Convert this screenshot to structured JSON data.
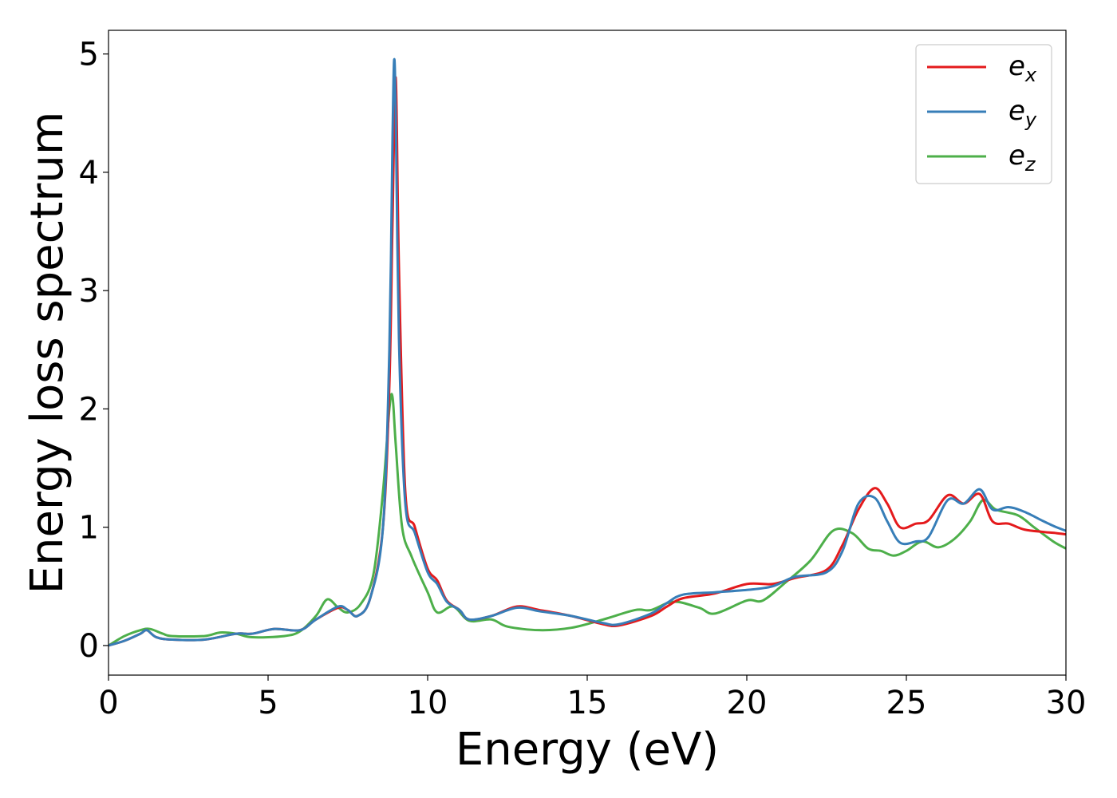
{
  "chart_data": {
    "type": "line",
    "xlabel": "Energy (eV)",
    "ylabel": "Energy loss spectrum",
    "xlim": [
      0,
      30
    ],
    "ylim": [
      -0.25,
      5.2
    ],
    "xticks": [
      0,
      5,
      10,
      15,
      20,
      25,
      30
    ],
    "yticks": [
      0,
      1,
      2,
      3,
      4,
      5
    ],
    "grid": false,
    "legend_position": "top-right",
    "series": [
      {
        "name": "e_x",
        "legend_base": "e",
        "legend_sub": "x",
        "color": "#e41a1c",
        "x": [
          0,
          0.5,
          1.0,
          1.2,
          1.5,
          2,
          3,
          4,
          4.5,
          5.2,
          6,
          6.5,
          7.2,
          7.5,
          7.8,
          8.2,
          8.6,
          8.8,
          8.9,
          9.0,
          9.1,
          9.3,
          9.6,
          10.0,
          10.3,
          10.6,
          11.0,
          11.3,
          12,
          12.8,
          13.5,
          14.5,
          15.5,
          16,
          17,
          17.5,
          18,
          19,
          20,
          20.8,
          21.5,
          22.5,
          23.0,
          23.5,
          24.0,
          24.4,
          24.8,
          25.3,
          25.7,
          26.3,
          26.8,
          27.3,
          27.7,
          28.2,
          28.7,
          29.3,
          29.7,
          30
        ],
        "y": [
          0.0,
          0.04,
          0.1,
          0.13,
          0.07,
          0.05,
          0.05,
          0.1,
          0.1,
          0.14,
          0.13,
          0.22,
          0.32,
          0.3,
          0.25,
          0.4,
          1.0,
          2.2,
          3.6,
          4.8,
          3.2,
          1.3,
          1.0,
          0.65,
          0.55,
          0.38,
          0.3,
          0.22,
          0.25,
          0.33,
          0.3,
          0.25,
          0.18,
          0.17,
          0.25,
          0.33,
          0.4,
          0.44,
          0.52,
          0.52,
          0.57,
          0.64,
          0.85,
          1.15,
          1.33,
          1.2,
          1.0,
          1.03,
          1.06,
          1.27,
          1.2,
          1.28,
          1.05,
          1.03,
          0.98,
          0.96,
          0.95,
          0.94
        ]
      },
      {
        "name": "e_y",
        "legend_base": "e",
        "legend_sub": "y",
        "color": "#377eb8",
        "x": [
          0,
          0.5,
          1.0,
          1.2,
          1.5,
          2,
          3,
          4,
          4.5,
          5.2,
          6,
          6.5,
          7.2,
          7.5,
          7.8,
          8.2,
          8.6,
          8.8,
          8.9,
          8.95,
          9.0,
          9.1,
          9.3,
          9.6,
          10.0,
          10.3,
          10.6,
          11.0,
          11.3,
          12,
          12.8,
          13.5,
          14.5,
          15.5,
          16,
          17,
          17.5,
          18,
          19,
          20,
          20.8,
          21.5,
          22.5,
          23.0,
          23.5,
          24.0,
          24.4,
          24.8,
          25.3,
          25.7,
          26.3,
          26.8,
          27.3,
          27.7,
          28.2,
          28.7,
          29.3,
          29.7,
          30
        ],
        "y": [
          0.0,
          0.04,
          0.1,
          0.13,
          0.07,
          0.05,
          0.05,
          0.1,
          0.1,
          0.14,
          0.13,
          0.22,
          0.33,
          0.3,
          0.25,
          0.4,
          1.0,
          2.5,
          4.3,
          4.95,
          4.5,
          2.6,
          1.2,
          0.95,
          0.62,
          0.52,
          0.37,
          0.3,
          0.22,
          0.25,
          0.32,
          0.29,
          0.25,
          0.19,
          0.18,
          0.27,
          0.36,
          0.43,
          0.45,
          0.47,
          0.5,
          0.58,
          0.62,
          0.8,
          1.2,
          1.25,
          1.05,
          0.87,
          0.88,
          0.92,
          1.23,
          1.2,
          1.32,
          1.15,
          1.17,
          1.13,
          1.05,
          1.0,
          0.97
        ]
      },
      {
        "name": "e_z",
        "legend_base": "e",
        "legend_sub": "z",
        "color": "#4daf4a",
        "x": [
          0,
          0.5,
          1.0,
          1.3,
          1.7,
          2,
          3,
          3.5,
          4,
          4.5,
          5.5,
          6,
          6.5,
          6.85,
          7.2,
          7.5,
          7.9,
          8.3,
          8.6,
          8.8,
          8.9,
          9.0,
          9.2,
          9.5,
          10.0,
          10.3,
          10.8,
          11.3,
          12,
          12.5,
          13.5,
          14.5,
          15.5,
          16.5,
          17,
          17.7,
          18.5,
          19,
          20,
          20.5,
          21.2,
          22.0,
          22.7,
          23.3,
          23.8,
          24.2,
          24.6,
          25.0,
          25.5,
          26.0,
          26.5,
          27.0,
          27.4,
          27.8,
          28.5,
          29.0,
          29.6,
          30
        ],
        "y": [
          0.0,
          0.08,
          0.13,
          0.14,
          0.1,
          0.08,
          0.08,
          0.11,
          0.1,
          0.07,
          0.08,
          0.12,
          0.25,
          0.39,
          0.32,
          0.28,
          0.35,
          0.6,
          1.3,
          2.0,
          2.1,
          1.7,
          1.0,
          0.75,
          0.45,
          0.28,
          0.33,
          0.21,
          0.22,
          0.16,
          0.13,
          0.15,
          0.22,
          0.3,
          0.3,
          0.37,
          0.32,
          0.27,
          0.38,
          0.38,
          0.53,
          0.72,
          0.97,
          0.95,
          0.82,
          0.8,
          0.76,
          0.8,
          0.88,
          0.83,
          0.9,
          1.05,
          1.23,
          1.15,
          1.1,
          1.0,
          0.88,
          0.82
        ]
      }
    ]
  }
}
